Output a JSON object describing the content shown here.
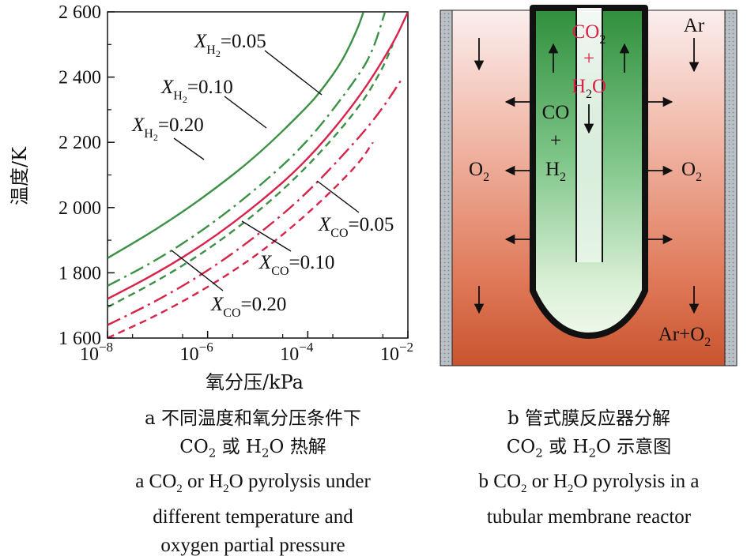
{
  "chart_data": {
    "type": "line",
    "xlabel": "氧分压/kPa",
    "ylabel": "温度/K",
    "xscale": "log",
    "xlim": [
      1e-08,
      0.01
    ],
    "ylim": [
      1600,
      2600
    ],
    "grid": false,
    "x_ticks": [
      {
        "value": 1e-08,
        "base": "10",
        "exp": "−8"
      },
      {
        "value": 1e-06,
        "base": "10",
        "exp": "−6"
      },
      {
        "value": 0.0001,
        "base": "10",
        "exp": "−4"
      },
      {
        "value": 0.01,
        "base": "10",
        "exp": "−2"
      }
    ],
    "y_ticks": [
      {
        "value": 1600,
        "label": "1 600"
      },
      {
        "value": 1800,
        "label": "1 800"
      },
      {
        "value": 2000,
        "label": "2 000"
      },
      {
        "value": 2200,
        "label": "2 200"
      },
      {
        "value": 2400,
        "label": "2 400"
      },
      {
        "value": 2600,
        "label": "2 600"
      }
    ],
    "series": [
      {
        "id": "h2-005",
        "gas": "H2",
        "fraction": "0.05",
        "color": "#3b9146",
        "dash": "solid",
        "points": [
          [
            1e-08,
            1845
          ],
          [
            1e-07,
            1935
          ],
          [
            1e-06,
            2040
          ],
          [
            1e-05,
            2160
          ],
          [
            0.0001,
            2310
          ],
          [
            0.0002,
            2365
          ],
          [
            0.0005,
            2450
          ],
          [
            0.001,
            2550
          ],
          [
            0.0013,
            2600
          ]
        ]
      },
      {
        "id": "h2-010",
        "gas": "H2",
        "fraction": "0.10",
        "color": "#3b9146",
        "dash": "dashdot",
        "points": [
          [
            1e-08,
            1760
          ],
          [
            1e-07,
            1840
          ],
          [
            1e-06,
            1940
          ],
          [
            1e-05,
            2060
          ],
          [
            0.0001,
            2200
          ],
          [
            0.001,
            2400
          ],
          [
            0.002,
            2480
          ],
          [
            0.0035,
            2600
          ]
        ]
      },
      {
        "id": "h2-020",
        "gas": "H2",
        "fraction": "0.20",
        "color": "#3b9146",
        "dash": "dash",
        "points": [
          [
            1e-08,
            1695
          ],
          [
            1e-07,
            1775
          ],
          [
            1e-06,
            1870
          ],
          [
            1e-05,
            1985
          ],
          [
            0.0001,
            2125
          ],
          [
            0.001,
            2300
          ],
          [
            0.003,
            2420
          ],
          [
            0.005,
            2500
          ]
        ]
      },
      {
        "id": "co-005",
        "gas": "CO",
        "fraction": "0.05",
        "color": "#d8234a",
        "dash": "solid",
        "points": [
          [
            1e-08,
            1720
          ],
          [
            1e-07,
            1800
          ],
          [
            1e-06,
            1895
          ],
          [
            1e-05,
            2010
          ],
          [
            0.0001,
            2145
          ],
          [
            0.001,
            2330
          ],
          [
            0.005,
            2500
          ],
          [
            0.01,
            2600
          ]
        ]
      },
      {
        "id": "co-010",
        "gas": "CO",
        "fraction": "0.10",
        "color": "#d8234a",
        "dash": "dashdot",
        "points": [
          [
            1e-08,
            1640
          ],
          [
            1e-07,
            1715
          ],
          [
            1e-06,
            1805
          ],
          [
            1e-05,
            1915
          ],
          [
            0.0001,
            2045
          ],
          [
            0.001,
            2210
          ],
          [
            0.003,
            2300
          ],
          [
            0.008,
            2400
          ]
        ]
      },
      {
        "id": "co-020",
        "gas": "CO",
        "fraction": "0.20",
        "color": "#d8234a",
        "dash": "dash",
        "points": [
          [
            1e-08,
            1600
          ],
          [
            1e-07,
            1670
          ],
          [
            1e-06,
            1755
          ],
          [
            1e-05,
            1855
          ],
          [
            0.0001,
            1980
          ],
          [
            0.001,
            2130
          ],
          [
            0.002,
            2200
          ]
        ]
      }
    ],
    "annotations": [
      {
        "for": "h2-005",
        "var": "X",
        "sub": "H",
        "sub2": "2",
        "eq": "=0.05"
      },
      {
        "for": "h2-010",
        "var": "X",
        "sub": "H",
        "sub2": "2",
        "eq": "=0.10"
      },
      {
        "for": "h2-020",
        "var": "X",
        "sub": "H",
        "sub2": "2",
        "eq": "=0.20"
      },
      {
        "for": "co-005",
        "var": "X",
        "sub": "CO",
        "sub2": "",
        "eq": "=0.05"
      },
      {
        "for": "co-010",
        "var": "X",
        "sub": "CO",
        "sub2": "",
        "eq": "=0.10"
      },
      {
        "for": "co-020",
        "var": "X",
        "sub": "CO",
        "sub2": "",
        "eq": "=0.20"
      }
    ]
  },
  "diagram": {
    "center_top": "CO",
    "center_top_sub": "2",
    "center_plus": "+",
    "center_mid": "H",
    "center_mid_sub": "2",
    "center_mid_tail": "O",
    "inner_co": "CO",
    "inner_plus": "+",
    "inner_h": "H",
    "inner_h_sub": "2",
    "left_o": "O",
    "left_o_sub": "2",
    "right_o": "O",
    "right_o_sub": "2",
    "ar_top": "Ar",
    "ar_bottom": "Ar+O",
    "ar_bottom_sub": "2",
    "colors": {
      "red_text": "#d8234a",
      "green_dark": "#2f8a3c",
      "wall": "#111111"
    }
  },
  "captions": {
    "a_zh_line1": "a  不同温度和氧分压条件下",
    "a_zh_line2_pre": "CO",
    "a_zh_line2_sub1": "2",
    "a_zh_line2_mid": " 或 H",
    "a_zh_line2_sub2": "2",
    "a_zh_line2_post": "O 热解",
    "a_en_line1_pre": "a  CO",
    "a_en_line1_sub1": "2",
    "a_en_line1_mid": " or H",
    "a_en_line1_sub2": "2",
    "a_en_line1_post": "O pyrolysis under",
    "a_en_line2": "different temperature and",
    "a_en_line3": "oxygen partial pressure",
    "b_zh_line1": "b  管式膜反应器分解",
    "b_zh_line2_pre": "CO",
    "b_zh_line2_sub1": "2",
    "b_zh_line2_mid": " 或 H",
    "b_zh_line2_sub2": "2",
    "b_zh_line2_post": "O 示意图",
    "b_en_line1_pre": "b  CO",
    "b_en_line1_sub1": "2",
    "b_en_line1_mid": " or H",
    "b_en_line1_sub2": "2",
    "b_en_line1_post": "O pyrolysis in a",
    "b_en_line2": "tubular membrane reactor"
  }
}
